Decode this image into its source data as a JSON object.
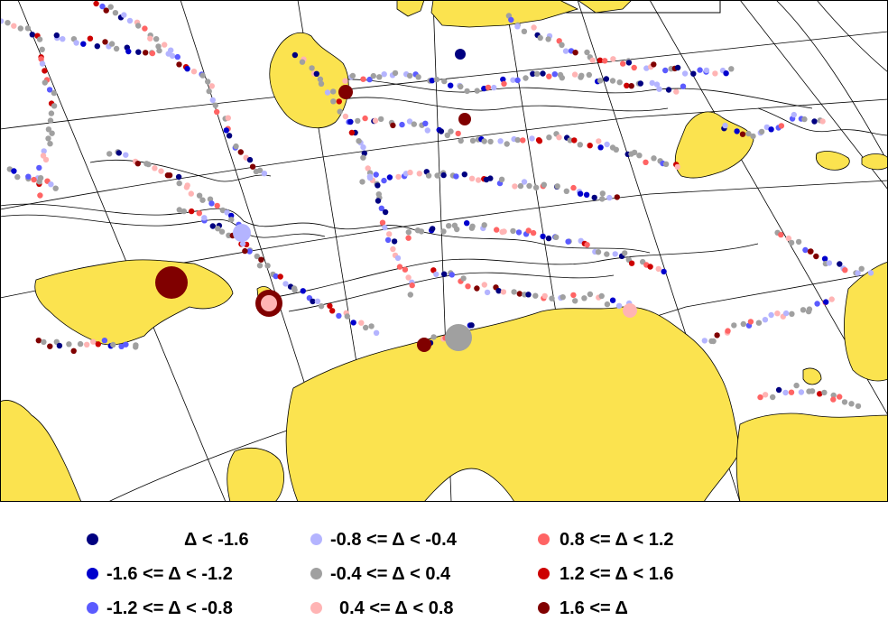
{
  "colors": {
    "land": "#fbe34f",
    "ocean": "#ffffff",
    "coast": "#000000",
    "contour": "#000000",
    "graticule": "#000000"
  },
  "legend": {
    "items": [
      {
        "label": "Δ < -1.6",
        "color": "#000080"
      },
      {
        "label": "-1.6 <= Δ < -1.2",
        "color": "#0000cd"
      },
      {
        "label": "-1.2 <= Δ < -0.8",
        "color": "#5b5bff"
      },
      {
        "label": "-0.8 <= Δ < -0.4",
        "color": "#b4b4ff"
      },
      {
        "label": "-0.4 <= Δ < 0.4",
        "color": "#a0a0a0"
      },
      {
        "label": "0.4 <= Δ < 0.8",
        "color": "#ffb4b4"
      },
      {
        "label": "0.8 <= Δ < 1.2",
        "color": "#ff6464"
      },
      {
        "label": "1.2 <= Δ < 1.6",
        "color": "#cd0000"
      },
      {
        "label": "1.6 <= Δ",
        "color": "#800000"
      }
    ]
  }
}
